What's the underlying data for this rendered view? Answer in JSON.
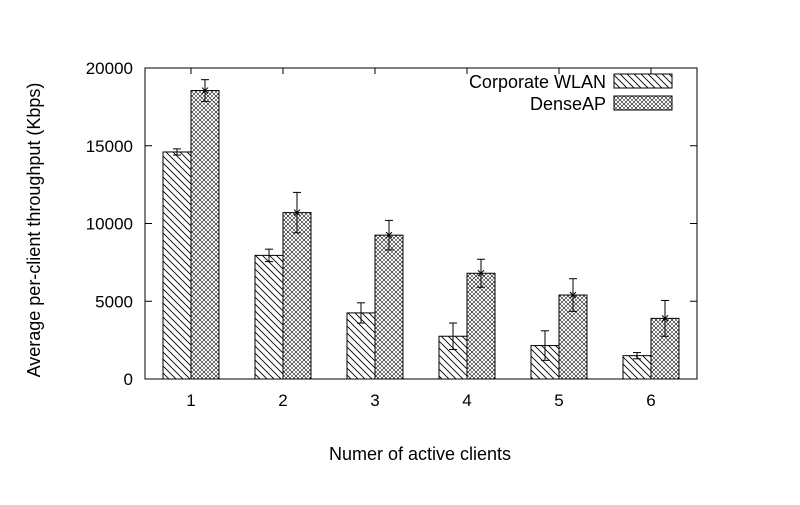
{
  "chart_data": {
    "type": "bar",
    "xlabel": "Numer of active clients",
    "ylabel": "Average per-client throughput (Kbps)",
    "categories": [
      "1",
      "2",
      "3",
      "4",
      "5",
      "6"
    ],
    "ylim": [
      0,
      20000
    ],
    "yticks": [
      "0",
      "5000",
      "10000",
      "15000",
      "20000"
    ],
    "legend_position": "top-right",
    "grid": false,
    "series": [
      {
        "name": "Corporate WLAN",
        "pattern": "diagonal-hatch",
        "values": [
          14600,
          7950,
          4250,
          2750,
          2150,
          1500
        ],
        "error": [
          200,
          400,
          650,
          850,
          950,
          200
        ]
      },
      {
        "name": "DenseAP",
        "pattern": "crosshatch",
        "values": [
          18550,
          10700,
          9250,
          6800,
          5400,
          3900
        ],
        "error": [
          700,
          1300,
          950,
          900,
          1050,
          1150
        ]
      }
    ]
  }
}
